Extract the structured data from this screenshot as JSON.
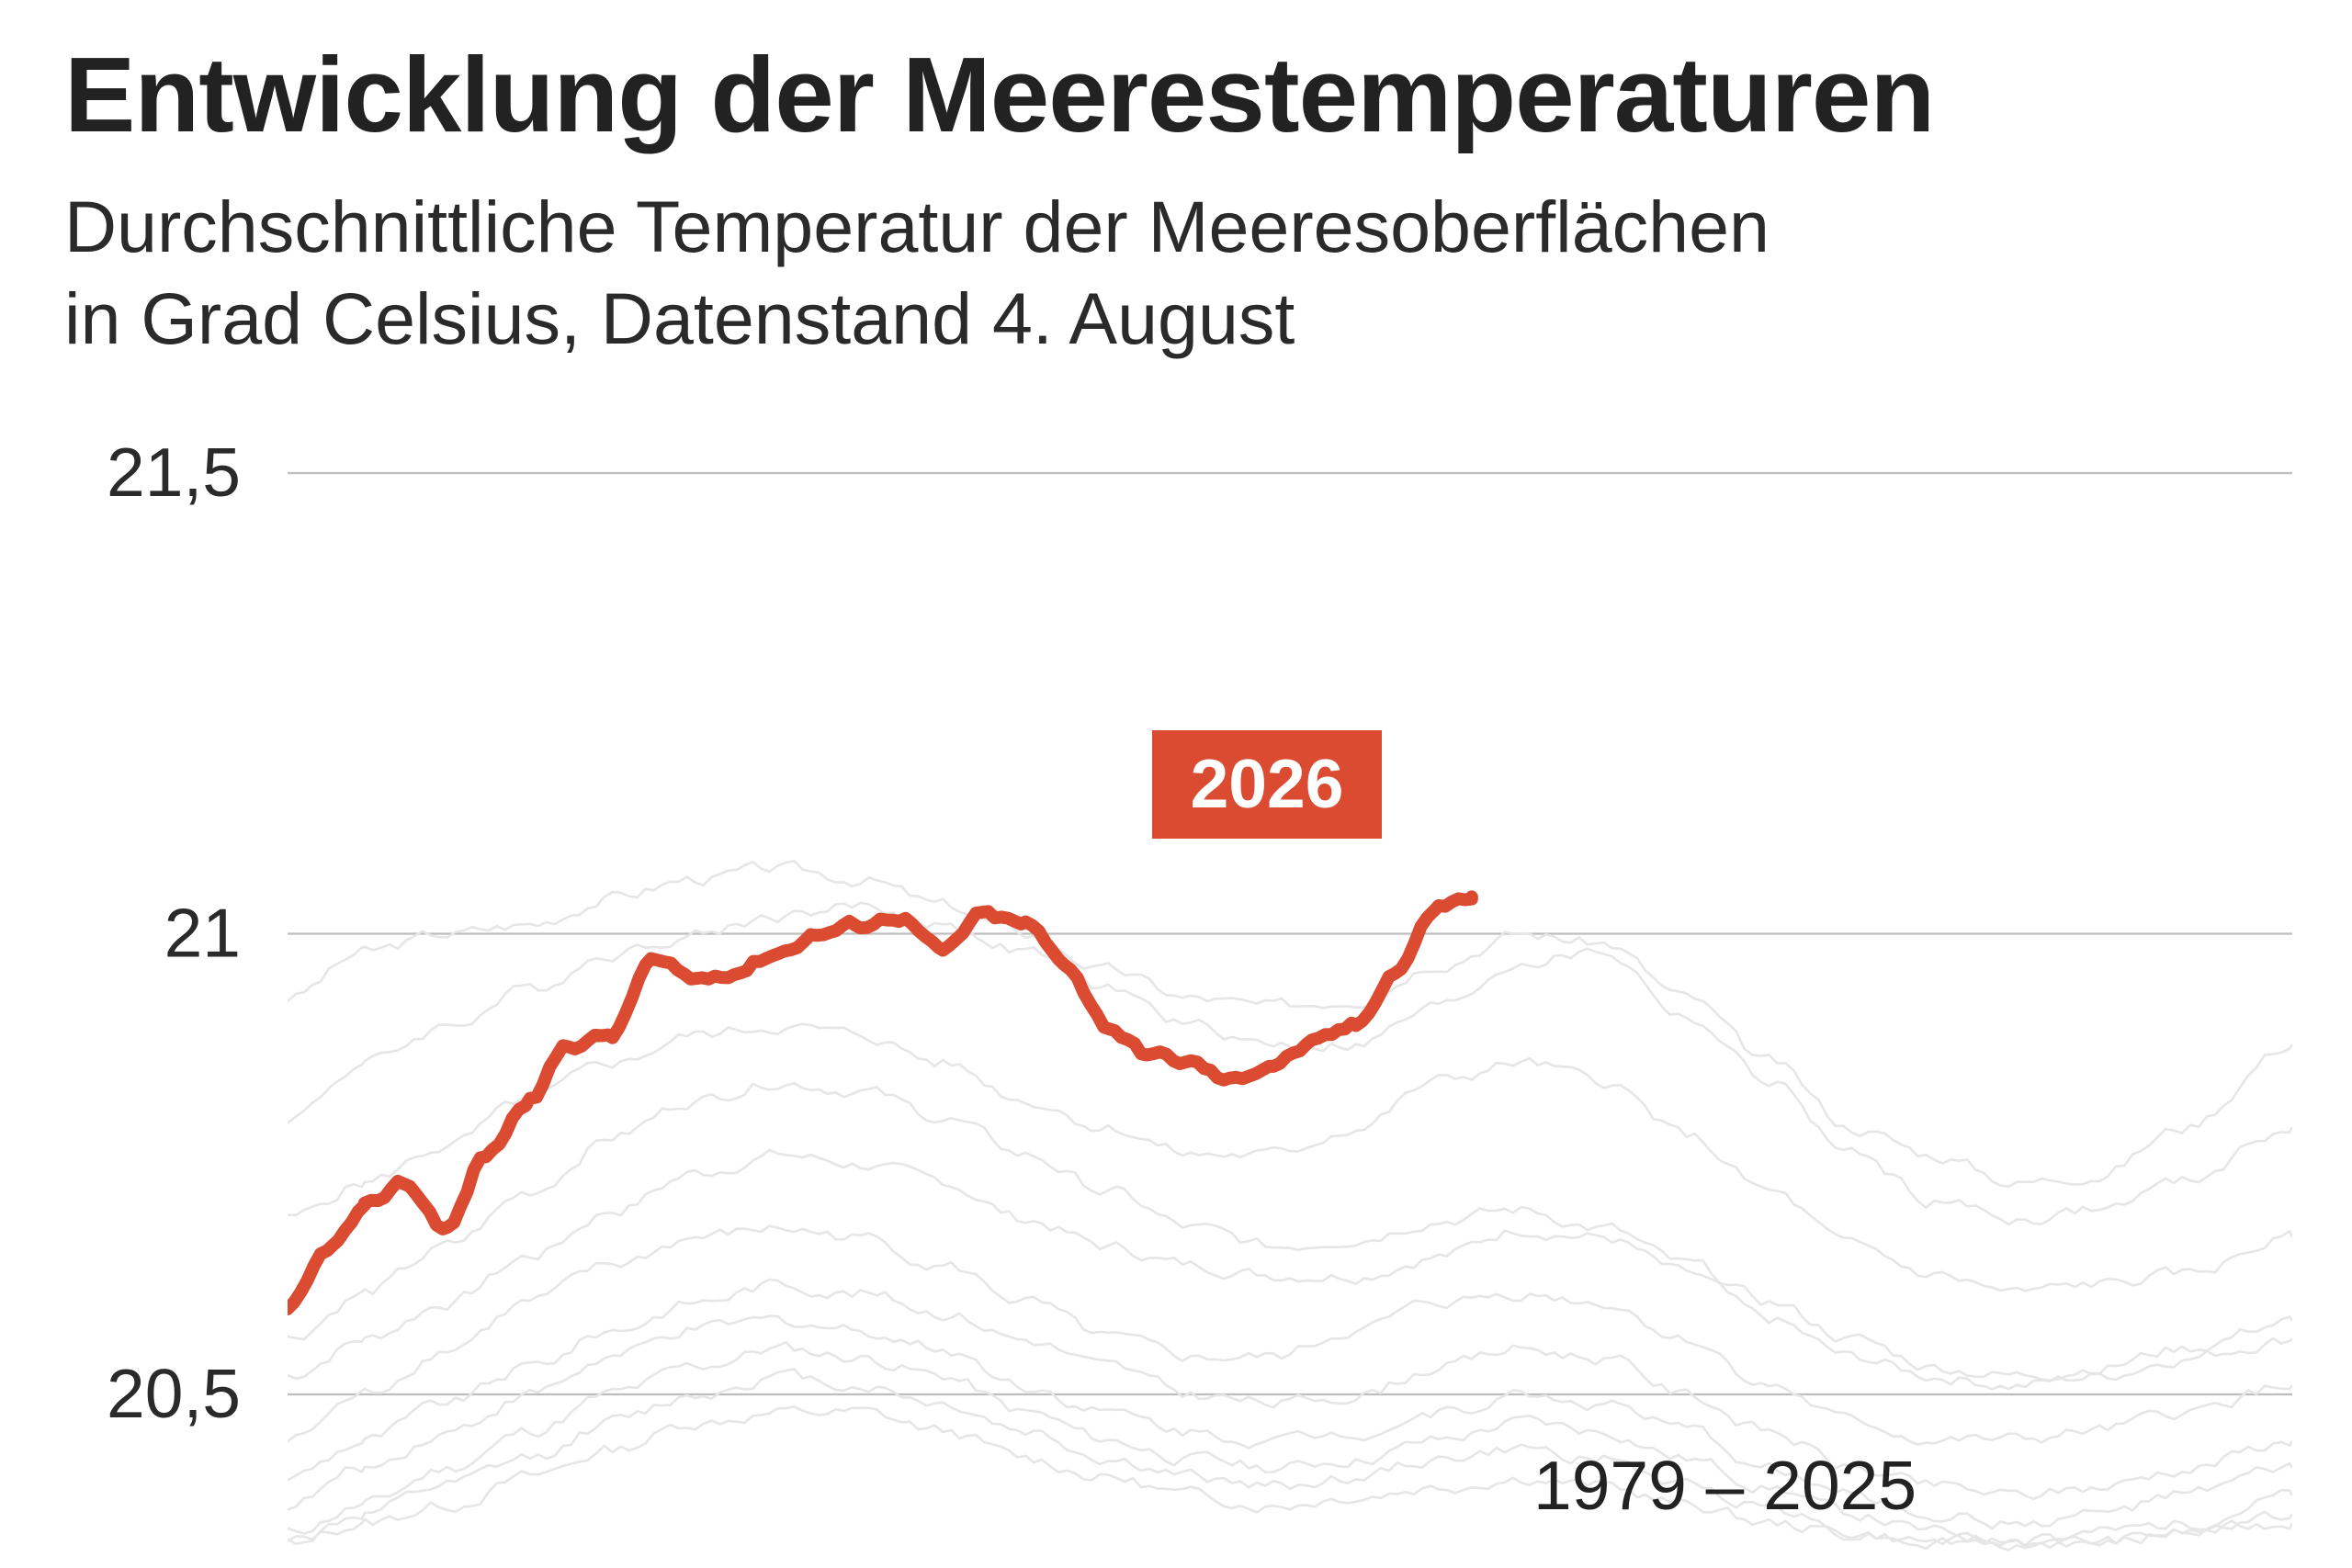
{
  "title": "Entwicklung der Meerestemperaturen",
  "subtitle": [
    "Durchschnittliche Temperatur der Meeresoberflächen",
    "in Grad Celsius, Datenstand 4. August"
  ],
  "colors": {
    "highlight": "#db4b32",
    "history": "#e6e6e6",
    "grid": "#bdbdbd",
    "text": "#222222"
  },
  "chart_data": {
    "type": "line",
    "title": "Entwicklung der Meerestemperaturen",
    "xlabel": "",
    "ylabel": "in Grad Celsius",
    "ylim": [
      20.33,
      21.5
    ],
    "xlim": [
      1,
      365
    ],
    "yticks": [
      {
        "value": 20.5,
        "label": "20,5"
      },
      {
        "value": 21,
        "label": "21"
      },
      {
        "value": 21.5,
        "label": "21,5"
      }
    ],
    "grid": true,
    "annotations": [
      {
        "text": "2026",
        "target": "highlight",
        "style": "badge"
      },
      {
        "text": "1979 – 2025",
        "target": "history"
      }
    ],
    "highlight": {
      "name": "2026",
      "color": "#db4b32",
      "x": [
        1,
        9,
        15,
        22,
        30,
        37,
        45,
        52,
        60,
        67,
        75,
        82,
        90,
        97,
        105,
        112,
        120,
        127,
        135,
        142,
        150,
        157,
        165,
        172,
        180,
        187,
        195,
        202,
        210,
        216
      ],
      "y": [
        20.59,
        20.66,
        20.7,
        20.73,
        20.68,
        20.76,
        20.82,
        20.88,
        20.89,
        20.97,
        20.95,
        20.96,
        20.98,
        21.0,
        21.01,
        21.02,
        20.98,
        21.02,
        21.01,
        20.97,
        20.9,
        20.87,
        20.86,
        20.84,
        20.86,
        20.88,
        20.9,
        20.96,
        21.03,
        21.04
      ]
    },
    "history": {
      "label": "1979 – 2025",
      "color": "#e6e6e6",
      "x": [
        1,
        15,
        30,
        45,
        60,
        75,
        90,
        105,
        120,
        135,
        150,
        165,
        180,
        195,
        210,
        225,
        240,
        255,
        270,
        285,
        300,
        315,
        330,
        345,
        365
      ],
      "series": [
        {
          "y": [
            20.93,
            20.98,
            21.0,
            21.01,
            21.04,
            21.06,
            21.07,
            21.06,
            21.03,
            21.0,
            20.96,
            20.93,
            20.92,
            20.93,
            20.97,
            21.0,
            20.99,
            20.93,
            20.86,
            20.79,
            20.76,
            20.73,
            20.74,
            20.79,
            20.88
          ]
        },
        {
          "y": [
            20.8,
            20.86,
            20.9,
            20.94,
            20.98,
            21.0,
            21.02,
            21.03,
            21.01,
            20.98,
            20.94,
            20.9,
            20.88,
            20.88,
            20.92,
            20.97,
            20.98,
            20.91,
            20.84,
            20.76,
            20.71,
            20.69,
            20.7,
            20.73,
            20.79
          ]
        },
        {
          "y": [
            20.69,
            20.73,
            20.77,
            20.82,
            20.86,
            20.89,
            20.9,
            20.89,
            20.86,
            20.82,
            20.79,
            20.76,
            20.76,
            20.79,
            20.84,
            20.86,
            20.84,
            20.78,
            20.72,
            20.66,
            20.63,
            20.61,
            20.62,
            20.63,
            20.67
          ]
        },
        {
          "y": [
            20.56,
            20.61,
            20.66,
            20.72,
            20.78,
            20.82,
            20.84,
            20.83,
            20.8,
            20.76,
            20.72,
            20.68,
            20.66,
            20.67,
            20.69,
            20.7,
            20.68,
            20.64,
            20.6,
            20.56,
            20.53,
            20.52,
            20.53,
            20.55,
            20.58
          ]
        },
        {
          "y": [
            20.52,
            20.56,
            20.6,
            20.65,
            20.7,
            20.74,
            20.76,
            20.75,
            20.73,
            20.69,
            20.66,
            20.64,
            20.63,
            20.63,
            20.65,
            20.68,
            20.67,
            20.63,
            20.58,
            20.54,
            20.52,
            20.51,
            20.52,
            20.54,
            20.56
          ]
        },
        {
          "y": [
            20.45,
            20.5,
            20.55,
            20.6,
            20.64,
            20.67,
            20.68,
            20.67,
            20.64,
            20.6,
            20.56,
            20.54,
            20.54,
            20.57,
            20.6,
            20.61,
            20.6,
            20.56,
            20.51,
            20.47,
            20.45,
            20.45,
            20.46,
            20.48,
            20.51
          ]
        },
        {
          "y": [
            20.41,
            20.45,
            20.49,
            20.53,
            20.57,
            20.6,
            20.62,
            20.61,
            20.59,
            20.56,
            20.53,
            20.5,
            20.49,
            20.5,
            20.53,
            20.55,
            20.54,
            20.5,
            20.46,
            20.42,
            20.4,
            20.39,
            20.4,
            20.42,
            20.45
          ]
        },
        {
          "y": [
            20.38,
            20.42,
            20.46,
            20.5,
            20.54,
            20.57,
            20.58,
            20.57,
            20.55,
            20.51,
            20.48,
            20.46,
            20.45,
            20.46,
            20.48,
            20.5,
            20.49,
            20.46,
            20.42,
            20.39,
            20.37,
            20.36,
            20.37,
            20.39,
            20.42
          ]
        },
        {
          "y": [
            20.35,
            20.38,
            20.42,
            20.46,
            20.5,
            20.53,
            20.55,
            20.54,
            20.52,
            20.48,
            20.45,
            20.43,
            20.42,
            20.43,
            20.45,
            20.47,
            20.46,
            20.43,
            20.4,
            20.37,
            20.35,
            20.34,
            20.35,
            20.36,
            20.39
          ]
        },
        {
          "y": [
            20.34,
            20.37,
            20.4,
            20.43,
            20.47,
            20.5,
            20.52,
            20.51,
            20.49,
            20.46,
            20.43,
            20.41,
            20.4,
            20.41,
            20.43,
            20.44,
            20.43,
            20.4,
            20.38,
            20.35,
            20.34,
            20.34,
            20.34,
            20.35,
            20.37
          ]
        },
        {
          "y": [
            20.34,
            20.36,
            20.38,
            20.41,
            20.44,
            20.47,
            20.48,
            20.48,
            20.46,
            20.43,
            20.41,
            20.39,
            20.38,
            20.39,
            20.4,
            20.41,
            20.4,
            20.38,
            20.36,
            20.35,
            20.34,
            20.34,
            20.34,
            20.35,
            20.36
          ]
        }
      ]
    }
  }
}
